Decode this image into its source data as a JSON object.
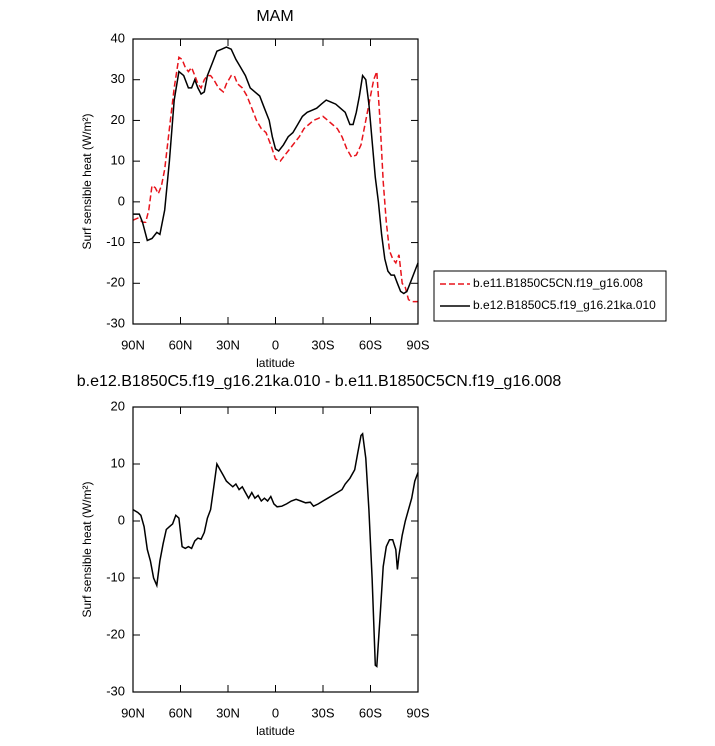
{
  "chart_data": [
    {
      "type": "line",
      "title": "MAM",
      "xlabel": "latitude",
      "ylabel": "Surf sensible heat (W/m²)",
      "xlim": [
        90,
        -90
      ],
      "xticks": [
        {
          "value": 90,
          "label": "90N"
        },
        {
          "value": 60,
          "label": "60N"
        },
        {
          "value": 30,
          "label": "30N"
        },
        0,
        {
          "value": -30,
          "label": "30S"
        },
        {
          "value": -60,
          "label": "60S"
        },
        {
          "value": -90,
          "label": "90S"
        }
      ],
      "ylim": [
        -30,
        40
      ],
      "yticks": [
        -30,
        -20,
        -10,
        0,
        10,
        20,
        30,
        40
      ],
      "legend": "right",
      "series": [
        {
          "name": "b.e11.B1850C5CN.f19_g16.008",
          "color": "#e8141c",
          "linestyle": "dashed",
          "x": [
            90,
            87,
            84,
            82,
            80,
            78,
            76,
            74,
            72,
            70,
            67,
            64,
            61,
            59,
            57,
            55,
            53,
            51,
            49,
            47,
            45,
            43,
            41,
            39,
            36,
            33,
            31,
            28,
            26,
            24,
            21,
            18,
            15,
            12,
            9,
            6,
            3,
            0,
            -3,
            -6,
            -9,
            -12,
            -15,
            -18,
            -21,
            -24,
            -27,
            -30,
            -33,
            -36,
            -39,
            -42,
            -45,
            -48,
            -51,
            -54,
            -57,
            -60,
            -62,
            -64,
            -66,
            -68,
            -70,
            -72,
            -74,
            -76,
            -78,
            -80,
            -82,
            -84,
            -86,
            -90
          ],
          "values": [
            -4.5,
            -4,
            -5,
            -5,
            -2,
            4,
            3.5,
            2,
            4,
            8,
            18,
            28,
            35.5,
            35,
            33,
            32,
            33,
            31,
            29,
            28,
            30,
            31,
            31,
            30,
            28,
            27,
            29,
            31,
            31,
            29,
            28,
            26,
            23,
            20,
            18,
            17,
            14,
            10.5,
            10,
            11.5,
            13,
            14.5,
            16,
            18,
            19,
            20,
            20.5,
            21,
            20,
            19,
            18,
            16,
            13,
            11,
            11.5,
            14,
            20,
            26,
            30,
            32,
            20,
            5,
            -5,
            -12,
            -14,
            -15,
            -13,
            -20,
            -21,
            -24,
            -24.5,
            -24.5
          ]
        },
        {
          "name": "b.e12.B1850C5.f19_g16.21ka.010",
          "color": "#000000",
          "linestyle": "solid",
          "x": [
            90,
            86,
            84,
            81,
            78,
            75,
            73,
            70,
            67,
            64,
            61,
            58,
            55,
            53,
            51,
            49,
            47,
            45,
            43,
            40,
            37,
            34,
            31,
            28,
            25,
            22,
            19,
            16,
            13,
            10,
            7,
            4,
            2,
            0,
            -2,
            -5,
            -8,
            -11,
            -14,
            -17,
            -20,
            -23,
            -26,
            -29,
            -32,
            -35,
            -38,
            -41,
            -44,
            -47,
            -49,
            -51,
            -53,
            -55,
            -57,
            -59,
            -61,
            -63,
            -65,
            -67,
            -69,
            -71,
            -73,
            -75,
            -77,
            -79,
            -81,
            -83,
            -85,
            -88,
            -90
          ],
          "values": [
            -3,
            -3,
            -5,
            -9.5,
            -9,
            -7.5,
            -8,
            -2,
            10,
            25,
            32,
            31,
            28,
            28,
            30,
            28,
            26.5,
            27,
            31,
            34,
            37,
            37.5,
            38,
            37.5,
            35,
            33,
            31,
            28,
            27,
            26,
            23,
            20,
            16,
            13,
            12.5,
            14,
            16,
            17,
            19,
            21,
            22,
            22.5,
            23,
            24,
            25,
            24.5,
            24,
            23,
            22,
            19,
            19,
            22,
            26,
            31,
            30,
            24,
            15,
            6,
            0,
            -8,
            -14,
            -17,
            -18,
            -18,
            -20,
            -22,
            -22.5,
            -22,
            -20,
            -17,
            -15
          ]
        }
      ]
    },
    {
      "type": "line",
      "title": "b.e12.B1850C5.f19_g16.21ka.010 - b.e11.B1850C5CN.f19_g16.008",
      "xlabel": "latitude",
      "ylabel": "Surf sensible heat (W/m²)",
      "xlim": [
        90,
        -90
      ],
      "xticks": [
        {
          "value": 90,
          "label": "90N"
        },
        {
          "value": 60,
          "label": "60N"
        },
        {
          "value": 30,
          "label": "30N"
        },
        0,
        {
          "value": -30,
          "label": "30S"
        },
        {
          "value": -60,
          "label": "60S"
        },
        {
          "value": -90,
          "label": "90S"
        }
      ],
      "ylim": [
        -30,
        20
      ],
      "yticks": [
        -30,
        -20,
        -10,
        0,
        10,
        20
      ],
      "series": [
        {
          "color": "#000000",
          "linestyle": "solid",
          "x": [
            90,
            87,
            85,
            83,
            81,
            79,
            77,
            75,
            73,
            71,
            69,
            67,
            65,
            63,
            61,
            59,
            57,
            55,
            53,
            51,
            49,
            47,
            45,
            43,
            41,
            39,
            37,
            35,
            33,
            31,
            29,
            27,
            25,
            23,
            21,
            19,
            17,
            15,
            13,
            11,
            9,
            7,
            5,
            3,
            1,
            -1,
            -4,
            -7,
            -10,
            -13,
            -16,
            -19,
            -22,
            -24,
            -27,
            -30,
            -33,
            -36,
            -39,
            -42,
            -44,
            -47,
            -50,
            -52,
            -54,
            -55,
            -57,
            -59,
            -61,
            -63,
            -64,
            -66,
            -68,
            -70,
            -72,
            -74,
            -76,
            -77,
            -78,
            -80,
            -82,
            -84,
            -86,
            -88,
            -90
          ],
          "values": [
            2,
            1.5,
            1,
            -1,
            -5,
            -7,
            -10,
            -11.3,
            -7,
            -4,
            -1.5,
            -1,
            -0.5,
            1,
            0.5,
            -4.5,
            -4.8,
            -4.5,
            -4.8,
            -3.5,
            -3,
            -3.2,
            -2,
            0.5,
            2,
            6,
            10,
            9,
            8,
            7,
            6.5,
            6,
            6.5,
            5.5,
            6,
            5,
            4,
            5,
            4,
            4.5,
            3.5,
            4,
            3.5,
            4.3,
            3,
            2.5,
            2.6,
            3,
            3.5,
            3.8,
            3.5,
            3.2,
            3.3,
            2.6,
            3,
            3.5,
            4,
            4.5,
            5,
            5.5,
            6.5,
            7.5,
            9,
            12,
            15,
            15.3,
            11,
            2,
            -10,
            -25.3,
            -25.5,
            -17,
            -8,
            -4.5,
            -3.3,
            -3.3,
            -5,
            -8.5,
            -6,
            -2.5,
            0,
            2,
            4,
            7,
            8.5
          ]
        }
      ]
    }
  ]
}
